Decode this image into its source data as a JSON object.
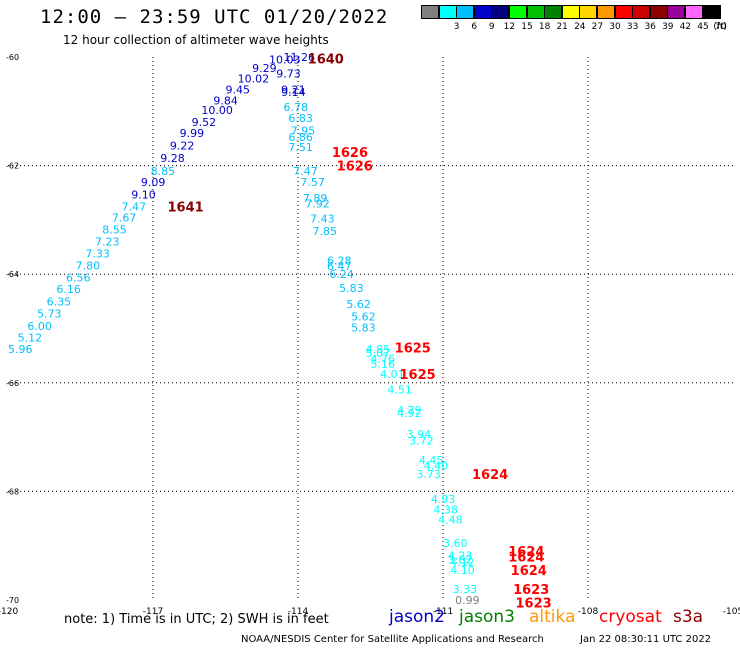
{
  "header": {
    "title": "12:00 – 23:59 UTC 01/20/2022",
    "subtitle": "12 hour collection of altimeter wave heights"
  },
  "legend": {
    "unit": "(ft)",
    "colors": [
      {
        "color": "#808080",
        "label": ""
      },
      {
        "color": "#00ffff",
        "label": "3"
      },
      {
        "color": "#00bfff",
        "label": "6"
      },
      {
        "color": "#0000cd",
        "label": "9"
      },
      {
        "color": "#000080",
        "label": "12"
      },
      {
        "color": "#00ff00",
        "label": "15"
      },
      {
        "color": "#00c000",
        "label": "18"
      },
      {
        "color": "#008000",
        "label": "21"
      },
      {
        "color": "#ffff00",
        "label": "24"
      },
      {
        "color": "#ffd700",
        "label": "27"
      },
      {
        "color": "#ff9900",
        "label": "30"
      },
      {
        "color": "#ff0000",
        "label": "33"
      },
      {
        "color": "#cc0000",
        "label": "36"
      },
      {
        "color": "#8b0000",
        "label": "39"
      },
      {
        "color": "#990099",
        "label": "42"
      },
      {
        "color": "#ff66ff",
        "label": "45"
      },
      {
        "color": "#000000",
        "label": "70"
      }
    ]
  },
  "map": {
    "lon_range": [
      -120,
      -105
    ],
    "lat_range": [
      -70,
      -60
    ],
    "lon_ticks": [
      "-120",
      "-117",
      "-114",
      "-111",
      "-108",
      "-105"
    ],
    "lat_ticks": [
      "-60",
      "-62",
      "-64",
      "-66",
      "-68",
      "-70"
    ],
    "tracks": [
      {
        "points": [
          {
            "v": "11.26",
            "c": "#0000cd",
            "lon": -114.3,
            "lat": -60.0
          },
          {
            "v": "10.03",
            "c": "#0000cd",
            "lon": -114.6,
            "lat": -60.05
          },
          {
            "v": "9.29",
            "c": "#0000cd",
            "lon": -114.95,
            "lat": -60.2
          },
          {
            "v": "9.73",
            "c": "#0000cd",
            "lon": -114.45,
            "lat": -60.3
          },
          {
            "v": "10.02",
            "c": "#0000cd",
            "lon": -115.25,
            "lat": -60.4
          },
          {
            "v": "9.45",
            "c": "#0000cd",
            "lon": -115.5,
            "lat": -60.6
          },
          {
            "v": "9.21",
            "c": "#0000cd",
            "lon": -114.35,
            "lat": -60.6
          },
          {
            "v": "9.14",
            "c": "#0000cd",
            "lon": -114.35,
            "lat": -60.64
          },
          {
            "v": "9.84",
            "c": "#0000cd",
            "lon": -115.75,
            "lat": -60.8
          },
          {
            "v": "10.00",
            "c": "#0000cd",
            "lon": -116.0,
            "lat": -60.98
          },
          {
            "v": "9.52",
            "c": "#0000cd",
            "lon": -116.2,
            "lat": -61.2
          },
          {
            "v": "9.99",
            "c": "#0000cd",
            "lon": -116.45,
            "lat": -61.4
          },
          {
            "v": "9.22",
            "c": "#0000cd",
            "lon": -116.65,
            "lat": -61.63
          },
          {
            "v": "9.28",
            "c": "#0000cd",
            "lon": -116.85,
            "lat": -61.86
          },
          {
            "v": "8.85",
            "c": "#00bfff",
            "lon": -117.05,
            "lat": -62.1
          },
          {
            "v": "9.09",
            "c": "#0000cd",
            "lon": -117.25,
            "lat": -62.3
          },
          {
            "v": "9.10",
            "c": "#0000cd",
            "lon": -117.45,
            "lat": -62.53
          },
          {
            "v": "7.47",
            "c": "#00bfff",
            "lon": -117.65,
            "lat": -62.75
          },
          {
            "v": "7.67",
            "c": "#00bfff",
            "lon": -117.85,
            "lat": -62.96
          },
          {
            "v": "8.55",
            "c": "#00bfff",
            "lon": -118.05,
            "lat": -63.18
          },
          {
            "v": "7.23",
            "c": "#00bfff",
            "lon": -118.2,
            "lat": -63.4
          },
          {
            "v": "7.33",
            "c": "#00bfff",
            "lon": -118.4,
            "lat": -63.62
          },
          {
            "v": "7.80",
            "c": "#00bfff",
            "lon": -118.6,
            "lat": -63.84
          },
          {
            "v": "6.56",
            "c": "#00bfff",
            "lon": -118.8,
            "lat": -64.06
          },
          {
            "v": "6.16",
            "c": "#00bfff",
            "lon": -119.0,
            "lat": -64.27
          },
          {
            "v": "6.35",
            "c": "#00bfff",
            "lon": -119.2,
            "lat": -64.5
          },
          {
            "v": "5.73",
            "c": "#00bfff",
            "lon": -119.4,
            "lat": -64.72
          },
          {
            "v": "6.00",
            "c": "#00bfff",
            "lon": -119.6,
            "lat": -64.95
          },
          {
            "v": "5.12",
            "c": "#00bfff",
            "lon": -119.8,
            "lat": -65.17
          },
          {
            "v": "5.96",
            "c": "#00bfff",
            "lon": -120.0,
            "lat": -65.38
          }
        ]
      },
      {
        "points": [
          {
            "v": "6.78",
            "c": "#00bfff",
            "lon": -114.3,
            "lat": -60.92
          },
          {
            "v": "6.83",
            "c": "#00bfff",
            "lon": -114.2,
            "lat": -61.12
          },
          {
            "v": "7.95",
            "c": "#00bfff",
            "lon": -114.15,
            "lat": -61.35
          },
          {
            "v": "6.86",
            "c": "#00bfff",
            "lon": -114.2,
            "lat": -61.47
          },
          {
            "v": "7.51",
            "c": "#00bfff",
            "lon": -114.2,
            "lat": -61.66
          },
          {
            "v": "7.47",
            "c": "#00bfff",
            "lon": -114.1,
            "lat": -62.1
          },
          {
            "v": "7.57",
            "c": "#00bfff",
            "lon": -113.95,
            "lat": -62.3
          },
          {
            "v": "7.89",
            "c": "#00bfff",
            "lon": -113.9,
            "lat": -62.6
          },
          {
            "v": "7.92",
            "c": "#00bfff",
            "lon": -113.85,
            "lat": -62.7
          },
          {
            "v": "7.43",
            "c": "#00bfff",
            "lon": -113.75,
            "lat": -62.97
          },
          {
            "v": "7.85",
            "c": "#00bfff",
            "lon": -113.7,
            "lat": -63.2
          },
          {
            "v": "6.28",
            "c": "#00bfff",
            "lon": -113.4,
            "lat": -63.75
          },
          {
            "v": "6.47",
            "c": "#00bfff",
            "lon": -113.4,
            "lat": -63.85
          },
          {
            "v": "6.24",
            "c": "#00bfff",
            "lon": -113.35,
            "lat": -64.0
          },
          {
            "v": "5.83",
            "c": "#00bfff",
            "lon": -113.15,
            "lat": -64.25
          },
          {
            "v": "5.62",
            "c": "#00bfff",
            "lon": -113.0,
            "lat": -64.55
          },
          {
            "v": "5.62",
            "c": "#00bfff",
            "lon": -112.9,
            "lat": -64.78
          },
          {
            "v": "5.83",
            "c": "#00bfff",
            "lon": -112.9,
            "lat": -64.98
          },
          {
            "v": "4.85",
            "c": "#00ffff",
            "lon": -112.6,
            "lat": -65.38
          },
          {
            "v": "5.07",
            "c": "#00ffff",
            "lon": -112.6,
            "lat": -65.45
          },
          {
            "v": "4.76",
            "c": "#00ffff",
            "lon": -112.5,
            "lat": -65.55
          },
          {
            "v": "5.16",
            "c": "#00ffff",
            "lon": -112.5,
            "lat": -65.65
          },
          {
            "v": "4.01",
            "c": "#00ffff",
            "lon": -112.3,
            "lat": -65.84
          },
          {
            "v": "4.51",
            "c": "#00ffff",
            "lon": -112.15,
            "lat": -66.12
          },
          {
            "v": "4.79",
            "c": "#00ffff",
            "lon": -111.95,
            "lat": -66.5
          },
          {
            "v": "4.92",
            "c": "#00ffff",
            "lon": -111.95,
            "lat": -66.56
          },
          {
            "v": "3.94",
            "c": "#00ffff",
            "lon": -111.75,
            "lat": -66.94
          },
          {
            "v": "3.72",
            "c": "#00ffff",
            "lon": -111.7,
            "lat": -67.06
          },
          {
            "v": "4.45",
            "c": "#00ffff",
            "lon": -111.5,
            "lat": -67.42
          },
          {
            "v": "4.40",
            "c": "#00ffff",
            "lon": -111.4,
            "lat": -67.52
          },
          {
            "v": "3.73",
            "c": "#00ffff",
            "lon": -111.55,
            "lat": -67.68
          },
          {
            "v": "4.93",
            "c": "#00ffff",
            "lon": -111.25,
            "lat": -68.14
          },
          {
            "v": "4.38",
            "c": "#00ffff",
            "lon": -111.2,
            "lat": -68.33
          },
          {
            "v": "4.48",
            "c": "#00ffff",
            "lon": -111.1,
            "lat": -68.52
          },
          {
            "v": "3.60",
            "c": "#00ffff",
            "lon": -111.0,
            "lat": -68.95
          },
          {
            "v": "4.23",
            "c": "#00ffff",
            "lon": -110.9,
            "lat": -69.18
          },
          {
            "v": "3.82",
            "c": "#00ffff",
            "lon": -110.9,
            "lat": -69.25
          },
          {
            "v": "4.12",
            "c": "#00ffff",
            "lon": -110.85,
            "lat": -69.3
          },
          {
            "v": "4.10",
            "c": "#00ffff",
            "lon": -110.85,
            "lat": -69.45
          },
          {
            "v": "3.33",
            "c": "#00ffff",
            "lon": -110.8,
            "lat": -69.8
          },
          {
            "v": "0.99",
            "c": "#808080",
            "lon": -110.75,
            "lat": -70.0
          }
        ]
      }
    ],
    "time_labels": [
      {
        "t": "1640",
        "c": "#8b0000",
        "lon": -113.8,
        "lat": -60.03
      },
      {
        "t": "1626",
        "c": "#ff0000",
        "lon": -113.3,
        "lat": -61.75
      },
      {
        "t": "1626",
        "c": "#ff0000",
        "lon": -113.2,
        "lat": -62.0
      },
      {
        "t": "1641",
        "c": "#8b0000",
        "lon": -116.7,
        "lat": -62.75
      },
      {
        "t": "1625",
        "c": "#ff0000",
        "lon": -112.0,
        "lat": -65.35
      },
      {
        "t": "1625",
        "c": "#ff0000",
        "lon": -111.9,
        "lat": -65.84
      },
      {
        "t": "1624",
        "c": "#ff0000",
        "lon": -110.4,
        "lat": -67.68
      },
      {
        "t": "1624",
        "c": "#ff0000",
        "lon": -109.65,
        "lat": -69.1
      },
      {
        "t": "1624",
        "c": "#ff0000",
        "lon": -109.65,
        "lat": -69.2
      },
      {
        "t": "1624",
        "c": "#ff0000",
        "lon": -109.6,
        "lat": -69.45
      },
      {
        "t": "1623",
        "c": "#ff0000",
        "lon": -109.55,
        "lat": -69.8
      },
      {
        "t": "1623",
        "c": "#ff0000",
        "lon": -109.5,
        "lat": -70.05
      }
    ]
  },
  "note": "note: 1) Time is in UTC; 2) SWH is in feet",
  "satellites": [
    {
      "name": "jason2",
      "color": "#0000cd"
    },
    {
      "name": "jason3",
      "color": "#008000"
    },
    {
      "name": "altika",
      "color": "#ff9900"
    },
    {
      "name": "cryosat",
      "color": "#ff0000"
    },
    {
      "name": "s3a",
      "color": "#8b0000"
    }
  ],
  "footer": {
    "org": "NOAA/NESDIS Center for Satellite Applications and Research",
    "timestamp": "Jan 22 08:30:11 UTC 2022"
  }
}
